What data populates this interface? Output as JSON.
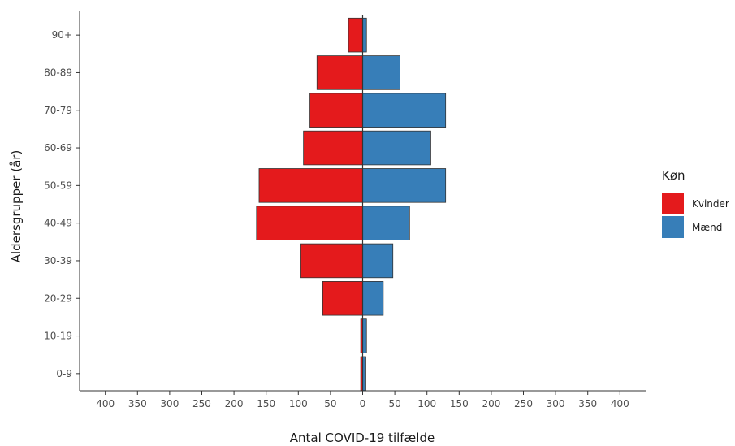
{
  "chart_data": {
    "type": "bar",
    "orientation": "horizontal",
    "layout": "population-pyramid",
    "categories": [
      "0-9",
      "10-19",
      "20-29",
      "30-39",
      "40-49",
      "50-59",
      "60-69",
      "70-79",
      "80-89",
      "90+"
    ],
    "series": [
      {
        "name": "Kvinder",
        "color": "#e41a1c",
        "direction": "left",
        "values": [
          3,
          3,
          62,
          96,
          165,
          161,
          92,
          82,
          71,
          22
        ]
      },
      {
        "name": "Mænd",
        "color": "#377eb8",
        "direction": "right",
        "values": [
          5,
          6,
          32,
          47,
          73,
          129,
          106,
          129,
          58,
          6
        ]
      }
    ],
    "xlabel": "Antal COVID-19 tilfælde",
    "ylabel": "Aldersgrupper (år)",
    "xlim": [
      -440,
      440
    ],
    "xticks": [
      {
        "value": -400,
        "label": "400"
      },
      {
        "value": -350,
        "label": "350"
      },
      {
        "value": -300,
        "label": "300"
      },
      {
        "value": -250,
        "label": "250"
      },
      {
        "value": -200,
        "label": "200"
      },
      {
        "value": -150,
        "label": "150"
      },
      {
        "value": -100,
        "label": "100"
      },
      {
        "value": -50,
        "label": "50"
      },
      {
        "value": 0,
        "label": "0"
      },
      {
        "value": 50,
        "label": "50"
      },
      {
        "value": 100,
        "label": "100"
      },
      {
        "value": 150,
        "label": "150"
      },
      {
        "value": 200,
        "label": "200"
      },
      {
        "value": 250,
        "label": "250"
      },
      {
        "value": 300,
        "label": "300"
      },
      {
        "value": 350,
        "label": "350"
      },
      {
        "value": 400,
        "label": "400"
      }
    ],
    "grid": false,
    "legend": {
      "title": "Køn",
      "placement": "right"
    }
  }
}
